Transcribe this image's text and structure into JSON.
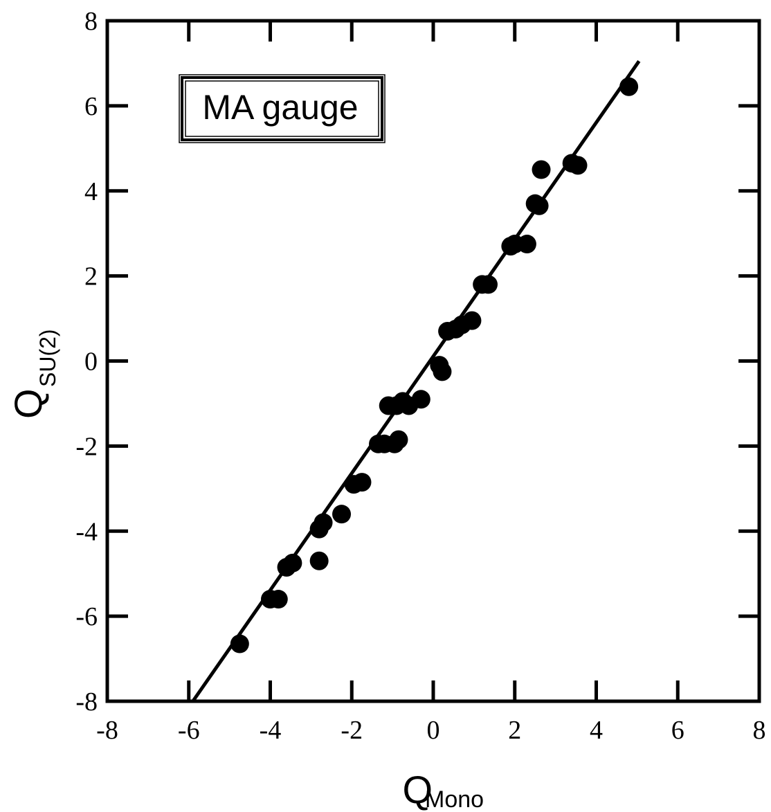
{
  "chart_data": {
    "type": "scatter",
    "title": "",
    "legend_box": "MA gauge",
    "xlabel": {
      "main": "Q",
      "sub": "Mono"
    },
    "ylabel": {
      "main": "Q",
      "sub": "SU(2)"
    },
    "xlim": [
      -8,
      8
    ],
    "ylim": [
      -8,
      8
    ],
    "xticks": [
      "-8",
      "-6",
      "-4",
      "-2",
      "0",
      "2",
      "4",
      "6",
      "8"
    ],
    "yticks": [
      "-8",
      "-6",
      "-4",
      "-2",
      "0",
      "2",
      "4",
      "6",
      "8"
    ],
    "grid": false,
    "colors": {
      "points": "#000000",
      "line": "#000000",
      "frame": "#000000"
    },
    "points": [
      {
        "x": -4.75,
        "y": -6.65
      },
      {
        "x": -4.0,
        "y": -5.6
      },
      {
        "x": -3.8,
        "y": -5.6
      },
      {
        "x": -3.6,
        "y": -4.85
      },
      {
        "x": -3.45,
        "y": -4.75
      },
      {
        "x": -2.8,
        "y": -4.7
      },
      {
        "x": -2.8,
        "y": -3.95
      },
      {
        "x": -2.7,
        "y": -3.8
      },
      {
        "x": -2.25,
        "y": -3.6
      },
      {
        "x": -1.95,
        "y": -2.9
      },
      {
        "x": -1.75,
        "y": -2.85
      },
      {
        "x": -1.35,
        "y": -1.95
      },
      {
        "x": -1.2,
        "y": -1.95
      },
      {
        "x": -0.95,
        "y": -1.95
      },
      {
        "x": -0.85,
        "y": -1.85
      },
      {
        "x": -1.1,
        "y": -1.05
      },
      {
        "x": -0.9,
        "y": -1.05
      },
      {
        "x": -0.75,
        "y": -0.95
      },
      {
        "x": -0.6,
        "y": -1.05
      },
      {
        "x": -0.3,
        "y": -0.9
      },
      {
        "x": 0.15,
        "y": -0.1
      },
      {
        "x": 0.22,
        "y": -0.25
      },
      {
        "x": 0.35,
        "y": 0.7
      },
      {
        "x": 0.55,
        "y": 0.75
      },
      {
        "x": 0.7,
        "y": 0.85
      },
      {
        "x": 0.95,
        "y": 0.95
      },
      {
        "x": 1.2,
        "y": 1.8
      },
      {
        "x": 1.35,
        "y": 1.8
      },
      {
        "x": 1.9,
        "y": 2.7
      },
      {
        "x": 2.0,
        "y": 2.75
      },
      {
        "x": 2.3,
        "y": 2.75
      },
      {
        "x": 2.5,
        "y": 3.7
      },
      {
        "x": 2.6,
        "y": 3.65
      },
      {
        "x": 2.65,
        "y": 4.5
      },
      {
        "x": 3.4,
        "y": 4.65
      },
      {
        "x": 3.55,
        "y": 4.6
      },
      {
        "x": 4.8,
        "y": 6.45
      }
    ],
    "fit_line": {
      "x": [
        -5.9,
        5.05
      ],
      "y": [
        -8.0,
        7.05
      ]
    }
  }
}
